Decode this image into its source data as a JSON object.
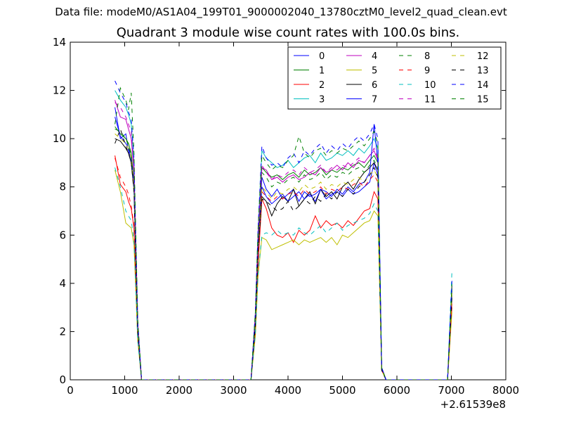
{
  "suptitle": "Data file: modeM0/AS1A04_199T01_9000002040_13780cztM0_level2_quad_clean.evt",
  "chart_data": {
    "type": "line",
    "title": "Quadrant 3 module wise count rates with 100.0s bins.",
    "xlabel": "",
    "ylabel": "",
    "xlim": [
      0,
      8000
    ],
    "ylim": [
      0,
      14
    ],
    "x_offset_label": "+2.61539e8",
    "x_ticks": [
      0,
      1000,
      2000,
      3000,
      4000,
      5000,
      6000,
      7000,
      8000
    ],
    "x_tick_labels": [
      "0",
      "1000",
      "2000",
      "3000",
      "4000",
      "5000",
      "6000",
      "7000",
      "8000"
    ],
    "y_ticks": [
      0,
      2,
      4,
      6,
      8,
      10,
      12,
      14
    ],
    "y_tick_labels": [
      "0",
      "2",
      "4",
      "6",
      "8",
      "10",
      "12",
      "14"
    ],
    "grid": false,
    "legend_position": "top-right",
    "legend_columns": 4,
    "x": [
      820,
      920,
      1020,
      1070,
      1120,
      1170,
      1240,
      1310,
      1400,
      2000,
      3000,
      3320,
      3400,
      3450,
      3520,
      3600,
      3700,
      3800,
      3900,
      4000,
      4100,
      4200,
      4300,
      4400,
      4500,
      4600,
      4700,
      4800,
      4900,
      5000,
      5100,
      5200,
      5300,
      5400,
      5500,
      5580,
      5650,
      5720,
      5800,
      6000,
      6800,
      6930,
      7010
    ],
    "series": [
      {
        "name": "0",
        "color": "#0000ff",
        "style": "solid",
        "values": [
          11.3,
          10.0,
          10.2,
          9.5,
          9.0,
          8.0,
          2.0,
          0,
          0,
          0,
          0,
          0,
          2.5,
          5.5,
          8.4,
          7.9,
          7.6,
          7.9,
          7.5,
          7.7,
          7.9,
          7.4,
          7.8,
          7.6,
          7.7,
          7.9,
          7.5,
          7.7,
          7.8,
          7.6,
          7.9,
          7.7,
          7.8,
          8.0,
          8.2,
          9.0,
          8.5,
          0.5,
          0,
          0,
          0,
          0,
          3.6
        ]
      },
      {
        "name": "1",
        "color": "#008000",
        "style": "solid",
        "values": [
          10.5,
          10.2,
          10.0,
          9.8,
          9.4,
          8.2,
          2.2,
          0,
          0,
          0,
          0,
          0,
          2.6,
          5.8,
          8.8,
          8.6,
          8.4,
          8.5,
          8.3,
          8.5,
          8.6,
          8.4,
          8.7,
          8.5,
          8.6,
          8.8,
          8.5,
          8.7,
          8.6,
          8.8,
          8.7,
          8.9,
          9.0,
          8.8,
          9.1,
          9.3,
          9.0,
          0.5,
          0,
          0,
          0,
          0,
          3.8
        ]
      },
      {
        "name": "2",
        "color": "#ff0000",
        "style": "solid",
        "values": [
          9.3,
          8.1,
          7.8,
          7.4,
          7.1,
          6.3,
          1.8,
          0,
          0,
          0,
          0,
          0,
          2.0,
          4.8,
          7.5,
          7.1,
          6.3,
          6.0,
          5.9,
          6.1,
          5.7,
          6.2,
          6.0,
          6.2,
          6.8,
          6.3,
          6.6,
          6.4,
          6.5,
          6.3,
          6.6,
          6.4,
          6.7,
          7.0,
          7.1,
          7.8,
          7.5,
          0.4,
          0,
          0,
          0,
          0,
          3.0
        ]
      },
      {
        "name": "3",
        "color": "#00bfbf",
        "style": "solid",
        "values": [
          12.0,
          11.6,
          11.3,
          11.0,
          10.6,
          9.0,
          2.4,
          0,
          0,
          0,
          0,
          0,
          2.8,
          6.2,
          9.5,
          9.2,
          9.0,
          8.8,
          8.9,
          9.1,
          8.8,
          9.0,
          9.2,
          9.3,
          9.0,
          9.4,
          9.1,
          9.2,
          9.4,
          9.3,
          9.5,
          9.3,
          9.6,
          9.4,
          9.7,
          10.0,
          9.6,
          0.5,
          0,
          0,
          0,
          0,
          4.0
        ]
      },
      {
        "name": "4",
        "color": "#bf00bf",
        "style": "solid",
        "values": [
          11.6,
          10.9,
          10.8,
          10.4,
          10.0,
          8.6,
          2.3,
          0,
          0,
          0,
          0,
          0,
          2.7,
          6.0,
          8.8,
          8.7,
          8.3,
          8.4,
          8.2,
          8.4,
          8.5,
          8.3,
          8.4,
          8.6,
          8.5,
          8.8,
          8.6,
          8.7,
          8.9,
          8.7,
          9.0,
          8.8,
          9.1,
          9.0,
          9.3,
          9.5,
          9.1,
          0.5,
          0,
          0,
          0,
          0,
          3.9
        ]
      },
      {
        "name": "5",
        "color": "#bfbf00",
        "style": "solid",
        "values": [
          8.7,
          7.8,
          6.5,
          6.4,
          6.3,
          5.6,
          1.6,
          0,
          0,
          0,
          0,
          0,
          1.8,
          4.3,
          5.9,
          5.8,
          5.4,
          5.5,
          5.6,
          5.7,
          5.8,
          5.6,
          5.8,
          5.7,
          5.8,
          5.9,
          5.7,
          5.9,
          5.6,
          6.0,
          5.9,
          6.1,
          6.3,
          6.5,
          6.6,
          7.0,
          6.8,
          0.4,
          0,
          0,
          0,
          0,
          2.8
        ]
      },
      {
        "name": "6",
        "color": "#000000",
        "style": "solid",
        "values": [
          10.0,
          9.9,
          9.6,
          9.4,
          9.0,
          7.9,
          2.1,
          0,
          0,
          0,
          0,
          0,
          2.4,
          5.4,
          7.6,
          7.4,
          6.8,
          7.3,
          7.6,
          7.4,
          7.9,
          7.2,
          7.5,
          7.8,
          7.3,
          7.9,
          7.6,
          7.8,
          7.5,
          8.0,
          8.2,
          7.9,
          8.3,
          8.6,
          8.8,
          9.0,
          8.7,
          0.5,
          0,
          0,
          0,
          0,
          3.5
        ]
      },
      {
        "name": "7",
        "color": "#0000ff",
        "style": "solid",
        "values": [
          10.9,
          10.1,
          9.8,
          9.6,
          9.2,
          8.1,
          2.1,
          0,
          0,
          0,
          0,
          0,
          2.5,
          5.6,
          8.0,
          7.6,
          7.3,
          7.5,
          7.7,
          7.4,
          7.6,
          7.8,
          7.5,
          7.7,
          7.4,
          7.9,
          7.8,
          7.6,
          7.9,
          7.7,
          8.0,
          7.8,
          8.1,
          8.2,
          8.6,
          10.6,
          9.0,
          0.5,
          0,
          0,
          0,
          0,
          3.7
        ]
      },
      {
        "name": "8",
        "color": "#008000",
        "style": "dashed",
        "values": [
          10.4,
          10.3,
          10.0,
          9.7,
          9.3,
          8.3,
          2.2,
          0,
          0,
          0,
          0,
          0,
          2.6,
          5.7,
          8.6,
          8.4,
          8.0,
          8.2,
          8.1,
          8.3,
          8.4,
          8.2,
          8.5,
          8.3,
          8.4,
          8.6,
          8.3,
          8.5,
          8.4,
          8.6,
          8.5,
          8.7,
          8.8,
          8.6,
          8.9,
          9.1,
          8.8,
          0.5,
          0,
          0,
          0,
          0,
          3.8
        ]
      },
      {
        "name": "9",
        "color": "#ff0000",
        "style": "dashed",
        "values": [
          9.2,
          8.4,
          8.0,
          7.7,
          7.2,
          6.4,
          1.8,
          0,
          0,
          0,
          0,
          0,
          2.0,
          4.9,
          7.8,
          7.6,
          7.4,
          7.6,
          7.5,
          7.7,
          7.8,
          7.6,
          7.9,
          7.7,
          7.8,
          8.0,
          7.7,
          7.9,
          7.8,
          8.0,
          7.9,
          8.1,
          8.2,
          8.0,
          8.3,
          8.5,
          8.2,
          0.4,
          0,
          0,
          0,
          0,
          3.2
        ]
      },
      {
        "name": "10",
        "color": "#00bfbf",
        "style": "dashed",
        "values": [
          8.8,
          8.0,
          7.0,
          6.8,
          6.6,
          5.8,
          1.6,
          0,
          0,
          0,
          0,
          0,
          1.9,
          4.4,
          6.0,
          6.1,
          6.0,
          6.2,
          6.0,
          6.1,
          6.0,
          6.3,
          6.1,
          6.0,
          6.2,
          6.4,
          6.1,
          6.3,
          6.5,
          6.2,
          6.4,
          6.5,
          6.6,
          6.7,
          6.9,
          7.3,
          7.0,
          0.4,
          0,
          0,
          0,
          0,
          4.5
        ]
      },
      {
        "name": "11",
        "color": "#bf00bf",
        "style": "dashed",
        "values": [
          11.5,
          11.3,
          10.9,
          10.6,
          10.3,
          8.8,
          2.3,
          0,
          0,
          0,
          0,
          0,
          2.7,
          6.0,
          8.9,
          8.6,
          8.3,
          8.5,
          8.4,
          8.6,
          8.7,
          8.5,
          8.8,
          8.6,
          8.7,
          8.9,
          8.6,
          8.8,
          8.7,
          8.9,
          8.8,
          9.0,
          9.2,
          9.0,
          9.3,
          9.6,
          9.2,
          0.5,
          0,
          0,
          0,
          0,
          3.9
        ]
      },
      {
        "name": "12",
        "color": "#bfbf00",
        "style": "dashed",
        "values": [
          10.2,
          10.0,
          9.8,
          9.6,
          9.2,
          8.0,
          2.1,
          0,
          0,
          0,
          0,
          0,
          2.4,
          5.4,
          8.0,
          7.8,
          7.5,
          7.8,
          7.7,
          7.9,
          8.0,
          7.8,
          8.1,
          7.9,
          8.0,
          8.2,
          7.9,
          8.1,
          8.0,
          8.2,
          8.1,
          8.3,
          8.4,
          8.2,
          8.5,
          8.7,
          8.4,
          0.4,
          0,
          0,
          0,
          0,
          3.6
        ]
      },
      {
        "name": "13",
        "color": "#000000",
        "style": "dashed",
        "values": [
          9.8,
          10.4,
          9.7,
          9.4,
          9.0,
          7.8,
          2.0,
          0,
          0,
          0,
          0,
          0,
          2.3,
          5.3,
          7.5,
          7.4,
          7.2,
          7.0,
          7.1,
          7.4,
          7.0,
          7.2,
          7.5,
          7.3,
          7.6,
          7.4,
          7.7,
          7.5,
          7.8,
          7.6,
          7.9,
          7.7,
          8.0,
          8.2,
          8.5,
          8.8,
          8.4,
          0.4,
          0,
          0,
          0,
          0,
          3.4
        ]
      },
      {
        "name": "14",
        "color": "#0000ff",
        "style": "dashed",
        "values": [
          12.4,
          11.9,
          11.5,
          11.1,
          10.8,
          9.2,
          2.4,
          0,
          0,
          0,
          0,
          0,
          2.8,
          6.3,
          9.7,
          9.2,
          8.9,
          9.0,
          8.8,
          9.2,
          9.4,
          9.0,
          9.5,
          9.3,
          9.6,
          9.8,
          9.4,
          9.7,
          9.5,
          9.8,
          9.6,
          9.9,
          10.1,
          9.9,
          10.2,
          10.6,
          10.0,
          0.5,
          0,
          0,
          0,
          0,
          4.1
        ]
      },
      {
        "name": "15",
        "color": "#008000",
        "style": "dashed",
        "values": [
          10.6,
          12.1,
          11.6,
          11.2,
          11.9,
          9.4,
          2.5,
          0,
          0,
          0,
          0,
          0,
          2.8,
          6.3,
          9.3,
          9.0,
          8.7,
          8.9,
          8.8,
          9.1,
          9.3,
          10.1,
          9.4,
          9.2,
          9.5,
          9.6,
          9.3,
          9.5,
          9.4,
          9.6,
          9.5,
          9.7,
          9.9,
          9.7,
          10.0,
          10.3,
          9.8,
          0.5,
          0,
          0,
          0,
          0,
          4.0
        ]
      }
    ]
  }
}
